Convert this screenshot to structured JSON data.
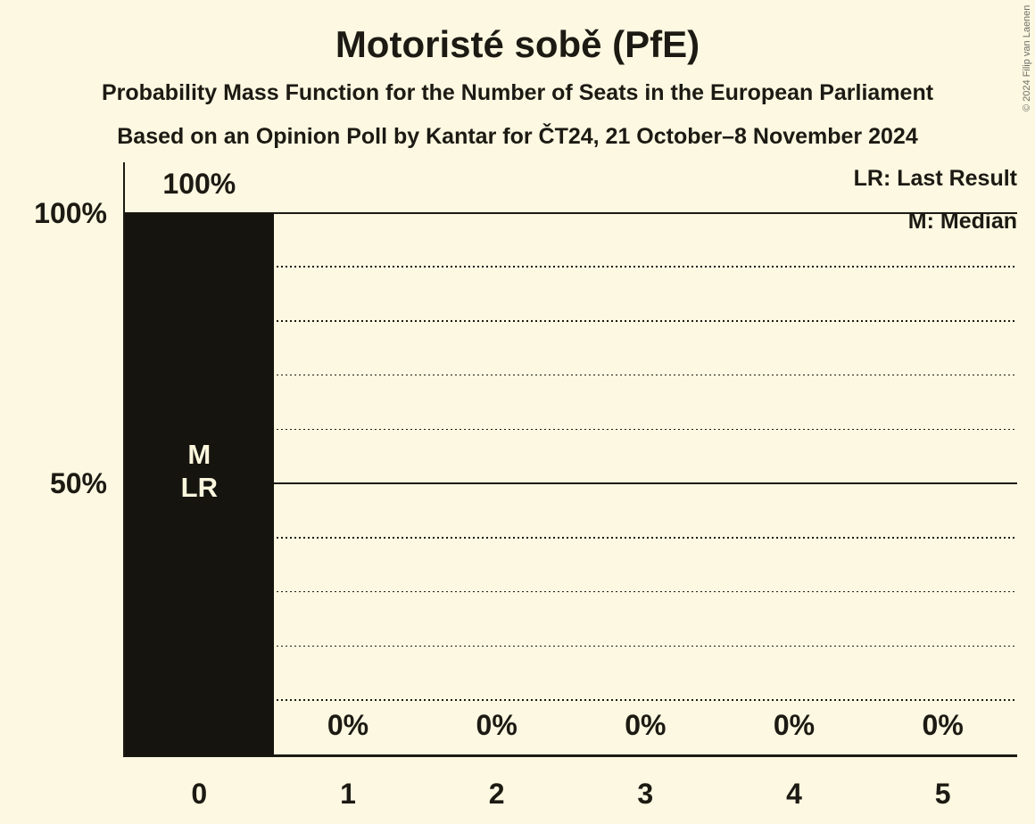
{
  "header": {
    "title": "Motoristé sobě (PfE)",
    "subtitle1": "Probability Mass Function for the Number of Seats in the European Parliament",
    "subtitle2": "Based on an Opinion Poll by Kantar for ČT24, 21 October–8 November 2024"
  },
  "legend": {
    "lr": "LR: Last Result",
    "m": "M: Median"
  },
  "footer": {
    "copyright": "© 2024 Filip van Laenen"
  },
  "colors": {
    "background": "#FCF8E1",
    "bar": "#16140F",
    "text": "#1C1A13",
    "bar_label_text": "#FBF7DE"
  },
  "chart_data": {
    "type": "bar",
    "title": "Motoristé sobě (PfE)",
    "xlabel": "",
    "ylabel": "",
    "categories": [
      "0",
      "1",
      "2",
      "3",
      "4",
      "5"
    ],
    "values": [
      100,
      0,
      0,
      0,
      0,
      0
    ],
    "value_labels": [
      "100%",
      "0%",
      "0%",
      "0%",
      "0%",
      "0%"
    ],
    "bar_annotations": [
      [
        "M",
        "LR"
      ],
      [],
      [],
      [],
      [],
      []
    ],
    "y_axis": {
      "range": [
        0,
        100
      ],
      "ticks": [
        {
          "value": 100,
          "label": "100%"
        },
        {
          "value": 50,
          "label": "50%"
        }
      ],
      "gridline_values": [
        10,
        20,
        30,
        40,
        50,
        60,
        70,
        80,
        90,
        100
      ],
      "solid_line_values": [
        50,
        100
      ],
      "grid": "on"
    },
    "legend_position": "top-right",
    "annotations_legend": [
      "LR: Last Result",
      "M: Median"
    ]
  }
}
